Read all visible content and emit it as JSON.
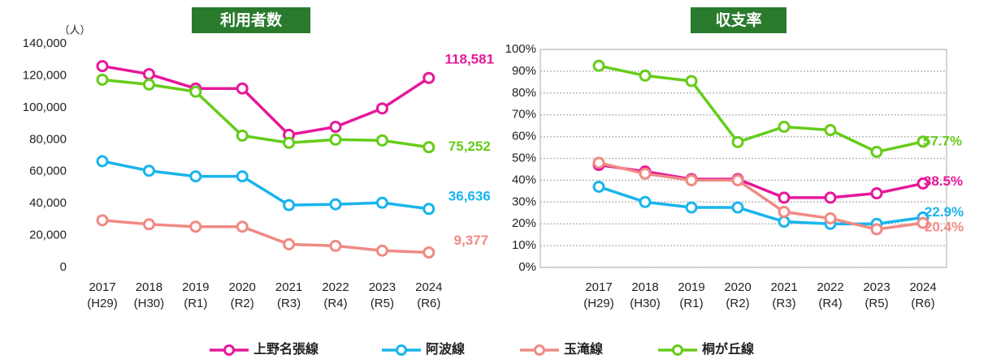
{
  "chart_data": [
    {
      "type": "line",
      "title": "利用者数",
      "y_unit": "（人）",
      "categories": [
        "2017\n(H29)",
        "2018\n(H30)",
        "2019\n(R1)",
        "2020\n(R2)",
        "2021\n(R3)",
        "2022\n(R4)",
        "2023\n(R5)",
        "2024\n(R6)"
      ],
      "ylim": [
        0,
        140000
      ],
      "yticks": [
        0,
        {
          "value": 20000,
          "label": "20,000"
        },
        {
          "value": 40000,
          "label": "40,000"
        },
        {
          "value": 60000,
          "label": "60,000"
        },
        {
          "value": 80000,
          "label": "80,000"
        },
        {
          "value": 100000,
          "label": "100,000"
        },
        {
          "value": 120000,
          "label": "120,000"
        },
        {
          "value": 140000,
          "label": "140,000"
        }
      ],
      "grid": false,
      "series": [
        {
          "name": "上野名張線",
          "color": "#e6189a",
          "values": [
            126000,
            121000,
            112000,
            112000,
            83000,
            88000,
            99500,
            118581
          ],
          "value_labels": [
            null,
            null,
            null,
            null,
            null,
            null,
            null,
            "118,581"
          ]
        },
        {
          "name": "阿波線",
          "color": "#1ab4ec",
          "values": [
            66500,
            60500,
            57000,
            57000,
            39000,
            39500,
            40500,
            36636
          ],
          "value_labels": [
            null,
            null,
            null,
            null,
            null,
            null,
            null,
            "36,636"
          ]
        },
        {
          "name": "玉滝線",
          "color": "#f08a84",
          "values": [
            29500,
            27000,
            25500,
            25500,
            14500,
            13500,
            10500,
            9377
          ],
          "value_labels": [
            null,
            null,
            null,
            null,
            null,
            null,
            null,
            "9,377"
          ]
        },
        {
          "name": "桐が丘線",
          "color": "#66cc1a",
          "values": [
            117500,
            114500,
            110000,
            82500,
            78000,
            80000,
            79500,
            75252
          ],
          "value_labels": [
            null,
            null,
            null,
            null,
            null,
            null,
            null,
            "75,252"
          ]
        }
      ]
    },
    {
      "type": "line",
      "title": "収支率",
      "categories": [
        "2017\n(H29)",
        "2018\n(H30)",
        "2019\n(R1)",
        "2020\n(R2)",
        "2021\n(R3)",
        "2022\n(R4)",
        "2023\n(R5)",
        "2024\n(R6)"
      ],
      "ylim": [
        0,
        100
      ],
      "yticks": [
        {
          "value": 0,
          "label": "0%"
        },
        {
          "value": 10,
          "label": "10%"
        },
        {
          "value": 20,
          "label": "20%"
        },
        {
          "value": 30,
          "label": "30%"
        },
        {
          "value": 40,
          "label": "40%"
        },
        {
          "value": 50,
          "label": "50%"
        },
        {
          "value": 60,
          "label": "60%"
        },
        {
          "value": 70,
          "label": "70%"
        },
        {
          "value": 80,
          "label": "80%"
        },
        {
          "value": 90,
          "label": "90%"
        },
        {
          "value": 100,
          "label": "100%"
        }
      ],
      "grid": true,
      "series": [
        {
          "name": "上野名張線",
          "color": "#e6189a",
          "values": [
            47,
            44,
            40.5,
            40.5,
            32,
            32,
            34,
            38.5
          ],
          "value_labels": [
            null,
            null,
            null,
            null,
            null,
            null,
            null,
            "38.5%"
          ]
        },
        {
          "name": "阿波線",
          "color": "#1ab4ec",
          "values": [
            37,
            30,
            27.5,
            27.5,
            21,
            20,
            20,
            22.9
          ],
          "value_labels": [
            null,
            null,
            null,
            null,
            null,
            null,
            null,
            "22.9%"
          ]
        },
        {
          "name": "玉滝線",
          "color": "#f08a84",
          "values": [
            48,
            43,
            40,
            40,
            25.5,
            22.5,
            17.5,
            20.4
          ],
          "value_labels": [
            null,
            null,
            null,
            null,
            null,
            null,
            null,
            "20.4%"
          ]
        },
        {
          "name": "桐が丘線",
          "color": "#66cc1a",
          "values": [
            92.5,
            88,
            85.5,
            57.5,
            64.5,
            63,
            53,
            57.7
          ],
          "value_labels": [
            null,
            null,
            null,
            null,
            null,
            null,
            null,
            "57.7%"
          ]
        }
      ]
    }
  ]
}
